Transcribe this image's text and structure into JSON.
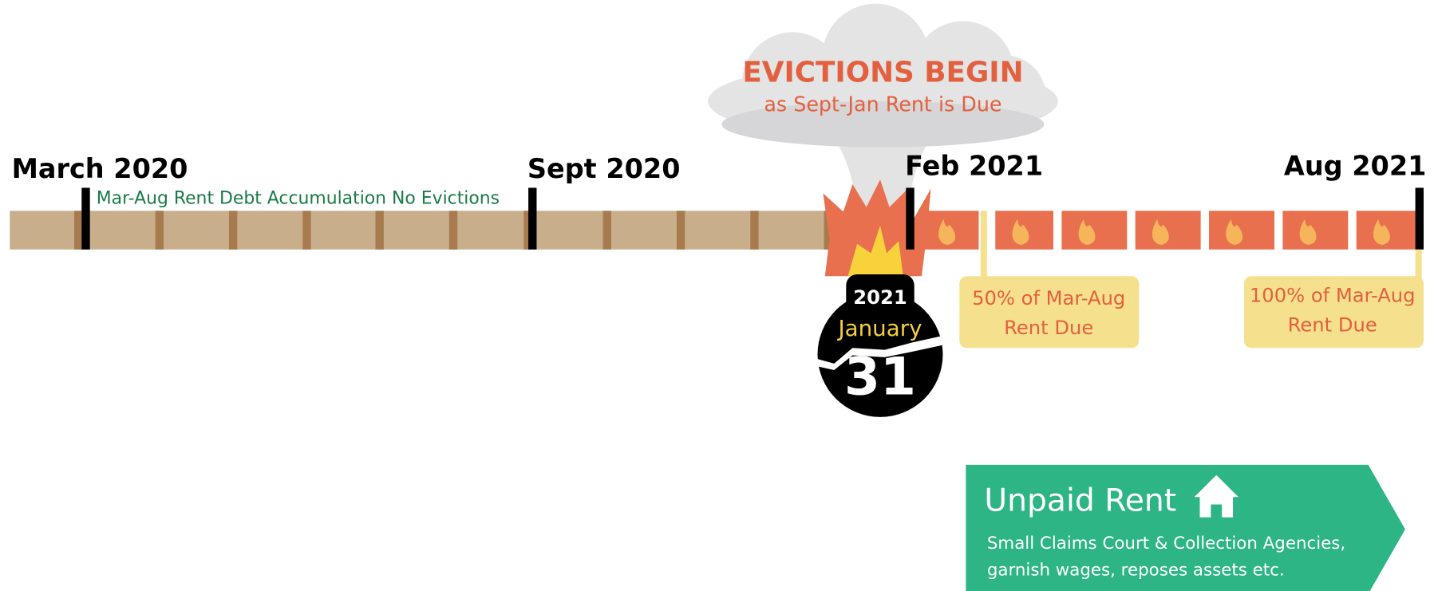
{
  "timeline": {
    "markers": [
      "March 2020",
      "Sept 2020",
      "Feb 2021",
      "Aug 2021"
    ],
    "accumulation_label": "Mar-Aug Rent Debt Accumulation No Evictions"
  },
  "cloud": {
    "title": "EVICTIONS BEGIN",
    "subtitle": "as Sept-Jan Rent is Due"
  },
  "bomb": {
    "year": "2021",
    "month": "January",
    "day": "31"
  },
  "callouts": [
    {
      "lines": [
        "50% of Mar-Aug",
        "Rent Due"
      ]
    },
    {
      "lines": [
        "100% of Mar-Aug",
        "Rent Due"
      ]
    }
  ],
  "unpaid": {
    "title": "Unpaid Rent",
    "lines": [
      "Small Claims Court & Collection Agencies,",
      "garnish wages, reposes assets etc."
    ]
  }
}
